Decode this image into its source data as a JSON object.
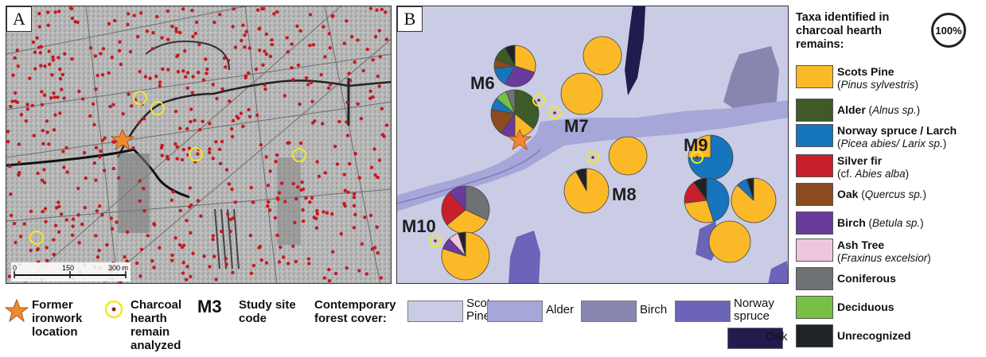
{
  "panels": {
    "a_letter": "A",
    "b_letter": "B"
  },
  "scale_bar": {
    "t0": "0",
    "t1": "150",
    "t2": "300 m"
  },
  "sites": [
    "M6",
    "M7",
    "M8",
    "M9",
    "M10"
  ],
  "legend": {
    "title": "Taxa identified in charcoal hearth remains:",
    "hundred_label": "100%",
    "taxa": [
      {
        "name": "Scots Pine",
        "latin": "Pinus sylvestris",
        "color": "#fbb928"
      },
      {
        "name": "Alder",
        "latin": "Alnus sp.",
        "color": "#3e5a26"
      },
      {
        "name": "Norway spruce / Larch",
        "latin": "Picea abies/ Larix sp.",
        "color": "#1675bd"
      },
      {
        "name": "Silver fir",
        "latin": "Abies alba",
        "prefix": "cf.",
        "color": "#c81f2a"
      },
      {
        "name": "Oak",
        "latin": "Quercus sp.",
        "color": "#8b4a20"
      },
      {
        "name": "Birch",
        "latin": "Betula sp.",
        "color": "#6a3a9c"
      },
      {
        "name": "Ash Tree",
        "latin": "Fraxinus excelsior",
        "color": "#eec7df"
      },
      {
        "name": "Coniferous",
        "latin": "",
        "color": "#6e7275"
      },
      {
        "name": "Deciduous",
        "latin": "",
        "color": "#77c043"
      },
      {
        "name": "Unrecognized",
        "latin": "",
        "color": "#1f2326"
      }
    ]
  },
  "bottom_legend": {
    "ironwork": "Former ironwork location",
    "hearth": "Charcoal hearth remain analyzed",
    "code_symbol": "M3",
    "code_label": "Study site code",
    "cover_title": "Contemporary forest cover:",
    "cover": [
      {
        "label": "Scots Pine",
        "color": "#cacce6"
      },
      {
        "label": "Alder",
        "color": "#a6a6d8"
      },
      {
        "label": "Birch",
        "color": "#8886b1"
      },
      {
        "label": "Norway spruce",
        "color": "#6b64b8"
      },
      {
        "label": "Oak",
        "color": "#221c4e"
      }
    ]
  },
  "pies": [
    {
      "site": "M6",
      "slices": [
        {
          "taxon": "Scots Pine",
          "pct": 30
        },
        {
          "taxon": "Birch",
          "pct": 28
        },
        {
          "taxon": "Norway spruce / Larch",
          "pct": 15
        },
        {
          "taxon": "Oak",
          "pct": 7
        },
        {
          "taxon": "Alder",
          "pct": 12
        },
        {
          "taxon": "Unrecognized",
          "pct": 8
        }
      ]
    },
    {
      "site": "M6",
      "slices": [
        {
          "taxon": "Alder",
          "pct": 36
        },
        {
          "taxon": "Scots Pine",
          "pct": 14
        },
        {
          "taxon": "Birch",
          "pct": 10
        },
        {
          "taxon": "Oak",
          "pct": 18
        },
        {
          "taxon": "Norway spruce / Larch",
          "pct": 8
        },
        {
          "taxon": "Deciduous",
          "pct": 8
        },
        {
          "taxon": "Coniferous",
          "pct": 6
        }
      ]
    },
    {
      "site": "M7",
      "slices": [
        {
          "taxon": "Scots Pine",
          "pct": 100
        }
      ]
    },
    {
      "site": "M7",
      "slices": [
        {
          "taxon": "Scots Pine",
          "pct": 100
        }
      ]
    },
    {
      "site": "M8",
      "slices": [
        {
          "taxon": "Scots Pine",
          "pct": 100
        }
      ]
    },
    {
      "site": "M8",
      "slices": [
        {
          "taxon": "Scots Pine",
          "pct": 92
        },
        {
          "taxon": "Unrecognized",
          "pct": 8
        }
      ]
    },
    {
      "site": "M9",
      "slices": [
        {
          "taxon": "Norway spruce / Larch",
          "pct": 75
        },
        {
          "taxon": "Scots Pine",
          "pct": 25
        }
      ]
    },
    {
      "site": "M9",
      "slices": [
        {
          "taxon": "Norway spruce / Larch",
          "pct": 45
        },
        {
          "taxon": "Scots Pine",
          "pct": 28
        },
        {
          "taxon": "Silver fir",
          "pct": 17
        },
        {
          "taxon": "Unrecognized",
          "pct": 10
        }
      ]
    },
    {
      "site": "M9",
      "slices": [
        {
          "taxon": "Scots Pine",
          "pct": 87
        },
        {
          "taxon": "Norway spruce / Larch",
          "pct": 8
        },
        {
          "taxon": "Unrecognized",
          "pct": 5
        }
      ]
    },
    {
      "site": "M9",
      "slices": [
        {
          "taxon": "Scots Pine",
          "pct": 100
        }
      ]
    },
    {
      "site": "M10",
      "slices": [
        {
          "taxon": "Coniferous",
          "pct": 32
        },
        {
          "taxon": "Scots Pine",
          "pct": 32
        },
        {
          "taxon": "Silver fir",
          "pct": 24
        },
        {
          "taxon": "Birch",
          "pct": 12
        }
      ]
    },
    {
      "site": "M10",
      "slices": [
        {
          "taxon": "Scots Pine",
          "pct": 80
        },
        {
          "taxon": "Birch",
          "pct": 8
        },
        {
          "taxon": "Ash Tree",
          "pct": 7
        },
        {
          "taxon": "Unrecognized",
          "pct": 5
        }
      ]
    }
  ]
}
